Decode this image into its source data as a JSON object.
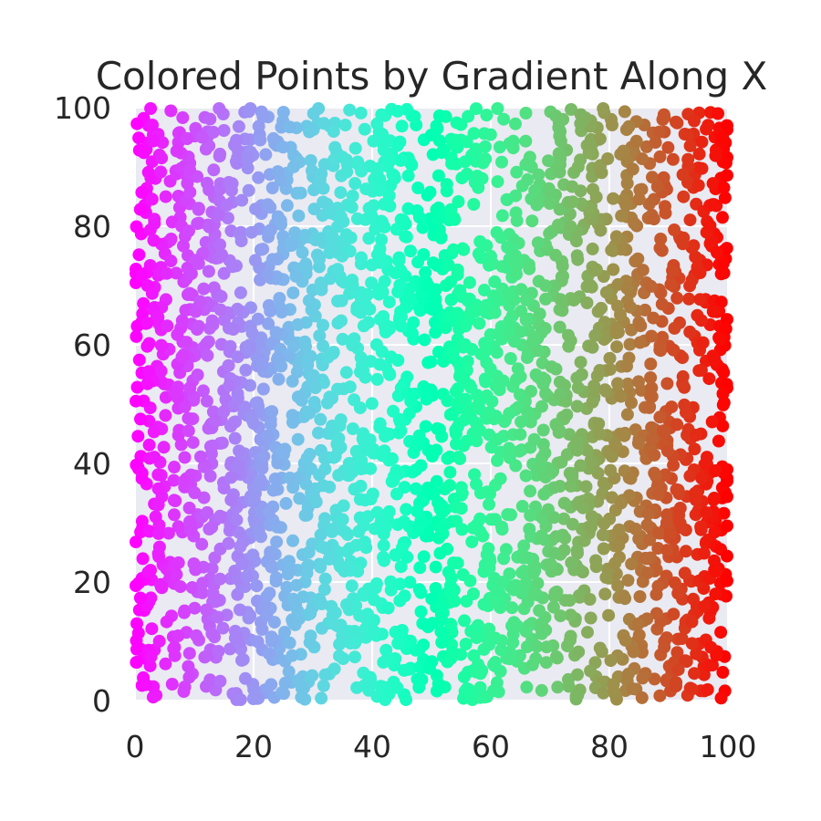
{
  "chart_data": {
    "type": "scatter",
    "title": "Colored Points by Gradient Along X",
    "xlabel": "",
    "ylabel": "",
    "xlim": [
      0,
      100
    ],
    "ylim": [
      0,
      100
    ],
    "x_ticks": [
      "0",
      "20",
      "40",
      "60",
      "80",
      "100"
    ],
    "y_ticks": [
      "0",
      "20",
      "40",
      "60",
      "80",
      "100"
    ],
    "grid": true,
    "colormap": "rainbow",
    "color_mapped_to": "x",
    "colors": {
      "plot_background": "#EAEAF2",
      "grid": "#FFFFFF",
      "text": "#262626",
      "low_x_color": "#8000FF",
      "high_x_color": "#FF0000"
    },
    "point_count": 3000,
    "x_distribution": "uniform",
    "y_distribution": "uniform",
    "x_range": [
      0,
      100
    ],
    "y_range": [
      0,
      100
    ]
  }
}
